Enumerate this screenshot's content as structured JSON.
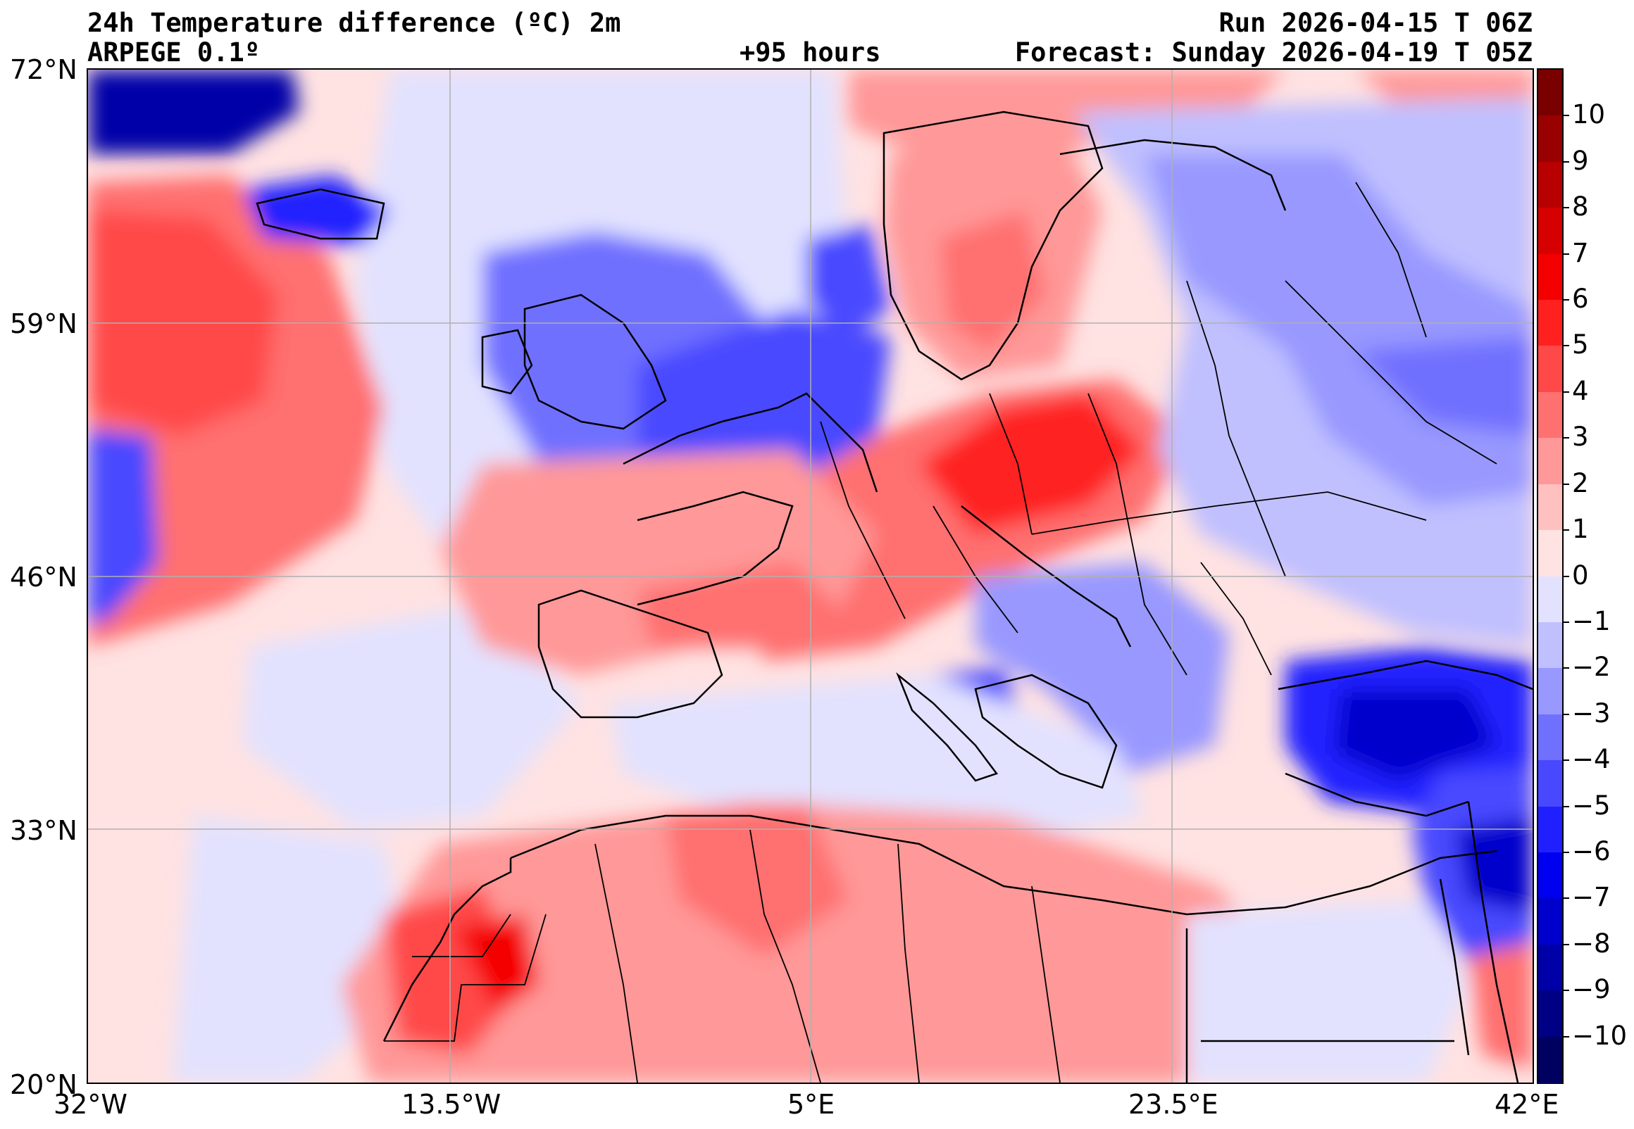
{
  "header": {
    "title_line1": "24h Temperature difference (ºC) 2m",
    "title_line2": "ARPEGE 0.1º",
    "lead_time": "+95 hours",
    "run": "Run 2026-04-15 T 06Z",
    "forecast": "Forecast: Sunday 2026-04-19 T 05Z"
  },
  "map": {
    "lat_labels": [
      "72°N",
      "59°N",
      "46°N",
      "33°N",
      "20°N"
    ],
    "lon_labels": [
      "32°W",
      "13.5°W",
      "5°E",
      "23.5°E",
      "42°E"
    ],
    "lat_range": [
      20,
      72
    ],
    "lon_range": [
      -32,
      42
    ]
  },
  "colorbar": {
    "labels": [
      "10",
      "9",
      "8",
      "7",
      "6",
      "5",
      "4",
      "3",
      "2",
      "1",
      "0",
      "−1",
      "−2",
      "−3",
      "−4",
      "−5",
      "−6",
      "−7",
      "−8",
      "−9",
      "−10"
    ],
    "colors": [
      "#7a0000",
      "#990000",
      "#b80000",
      "#d60000",
      "#f50000",
      "#ff2020",
      "#ff4848",
      "#ff7070",
      "#ff9898",
      "#ffc0c0",
      "#ffe2e2",
      "#e2e2ff",
      "#c0c0ff",
      "#9898ff",
      "#7070ff",
      "#4848ff",
      "#2020ff",
      "#0000f0",
      "#0000cc",
      "#0000a8",
      "#000084",
      "#000060"
    ]
  }
}
